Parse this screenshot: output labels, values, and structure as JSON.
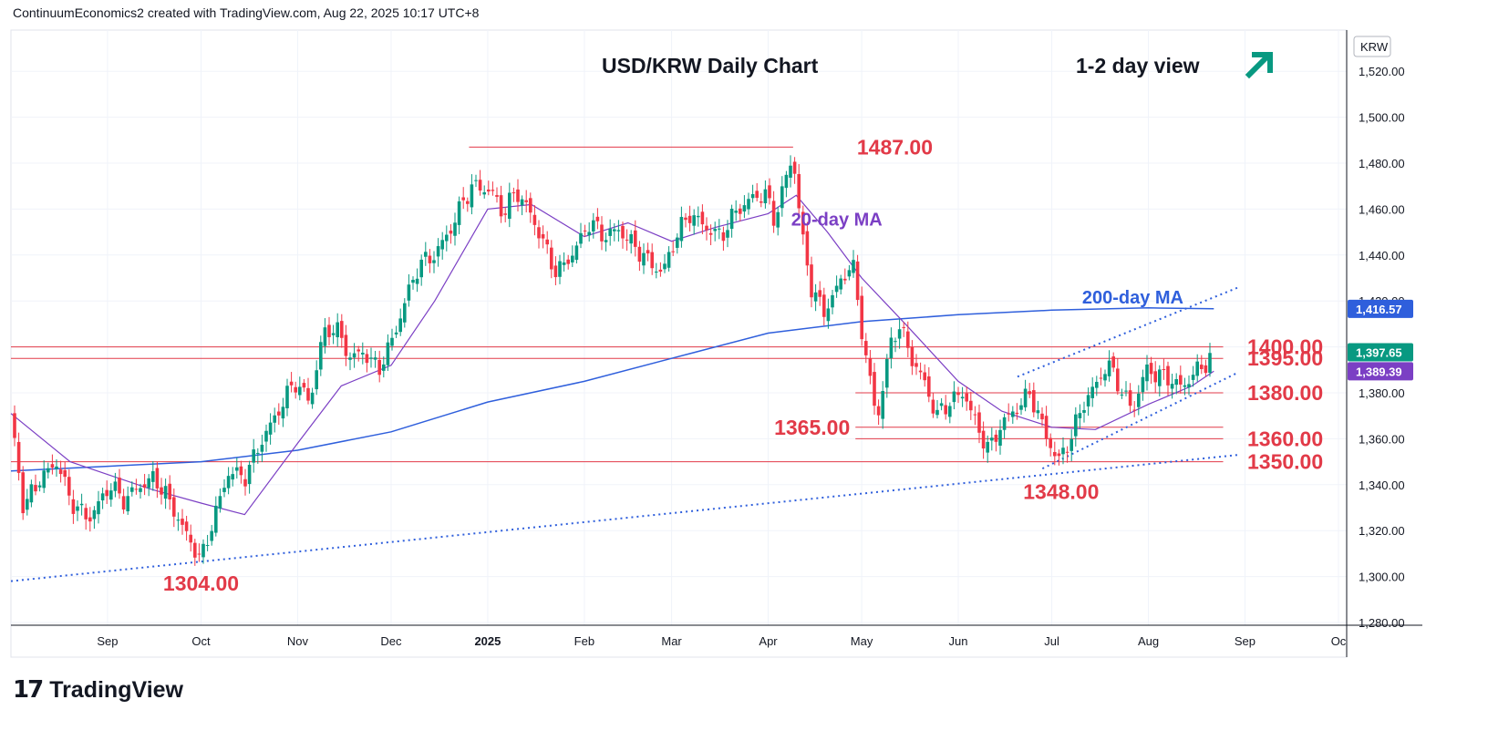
{
  "header": {
    "attribution": "ContinuumEconomics2 created with TradingView.com, Aug 22, 2025 10:17 UTC+8"
  },
  "logo": {
    "mark": "17",
    "word": "TradingView",
    "icon": "tradingview-logo-icon"
  },
  "colors": {
    "up": "#089981",
    "down": "#f23645",
    "ma20": "#7b3fc4",
    "ma200": "#2f5fdc",
    "level": "#e23a48",
    "trend": "#2f5fdc",
    "arrow": "#089981",
    "label": "#e23a48"
  },
  "chart_data": {
    "type": "candlestick",
    "title": "USD/KRW Daily Chart",
    "subtitle": "1-2 day view",
    "direction_icon": "arrow-up-right-icon",
    "currency": "KRW",
    "ylim": [
      1280,
      1540
    ],
    "y_ticks": [
      "1,520.00",
      "1,500.00",
      "1,480.00",
      "1,460.00",
      "1,440.00",
      "1,420.00",
      "1,400.00",
      "1,380.00",
      "1,360.00",
      "1,340.00",
      "1,320.00",
      "1,300.00",
      "1,280.00"
    ],
    "x_ticks": [
      {
        "label": "Sep",
        "date": "2024-09-01"
      },
      {
        "label": "Oct",
        "date": "2024-10-01"
      },
      {
        "label": "Nov",
        "date": "2024-11-01"
      },
      {
        "label": "Dec",
        "date": "2024-12-01"
      },
      {
        "label": "2025",
        "date": "2025-01-01",
        "bold": true
      },
      {
        "label": "Feb",
        "date": "2025-02-01"
      },
      {
        "label": "Mar",
        "date": "2025-03-01"
      },
      {
        "label": "Apr",
        "date": "2025-04-01"
      },
      {
        "label": "May",
        "date": "2025-05-01"
      },
      {
        "label": "Jun",
        "date": "2025-06-01"
      },
      {
        "label": "Jul",
        "date": "2025-07-01"
      },
      {
        "label": "Aug",
        "date": "2025-08-01"
      },
      {
        "label": "Sep",
        "date": "2025-09-01"
      },
      {
        "label": "Oc",
        "date": "2025-10-01"
      }
    ],
    "price_badges": [
      {
        "label": "1,416.57",
        "value": 1416.57,
        "kind": "ma200"
      },
      {
        "label": "1,397.65",
        "value": 1397.65,
        "kind": "last"
      },
      {
        "label": "1,389.39",
        "value": 1389.39,
        "kind": "ma20"
      }
    ],
    "levels": [
      {
        "label": "1487.00",
        "value": 1487,
        "from": "2024-12-26",
        "to": "2025-04-09",
        "label_side": "right"
      },
      {
        "label": "1400.00",
        "value": 1400,
        "from": "2024-08-01",
        "to": "2025-08-25",
        "label_side": "right"
      },
      {
        "label": "1395.00",
        "value": 1395,
        "from": "2024-08-01",
        "to": "2025-08-25",
        "label_side": "right"
      },
      {
        "label": "1380.00",
        "value": 1380,
        "from": "2025-04-29",
        "to": "2025-08-25",
        "label_side": "right"
      },
      {
        "label": "1365.00",
        "value": 1365,
        "from": "2025-04-29",
        "to": "2025-08-25",
        "label_side": "left"
      },
      {
        "label": "1360.00",
        "value": 1360,
        "from": "2025-04-29",
        "to": "2025-08-25",
        "label_side": "right"
      },
      {
        "label": "1350.00",
        "value": 1350,
        "from": "2024-08-01",
        "to": "2025-08-25",
        "label_side": "right"
      }
    ],
    "point_labels": [
      {
        "label": "1304.00",
        "date": "2024-10-01",
        "value": 1297
      },
      {
        "label": "1348.00",
        "date": "2025-07-04",
        "value": 1337
      }
    ],
    "ma_labels": [
      {
        "label": "20-day MA",
        "date": "2025-04-23",
        "value": 1456,
        "series": "ma20"
      },
      {
        "label": "200-day MA",
        "date": "2025-07-27",
        "value": 1422,
        "series": "ma200"
      }
    ],
    "trendlines": [
      {
        "name": "",
        "points": [
          [
            "2024-08-01",
            1298
          ],
          [
            "2025-08-30",
            1353
          ]
        ]
      },
      {
        "name": "",
        "points": [
          [
            "2025-06-20",
            1387
          ],
          [
            "2025-08-30",
            1426
          ]
        ]
      },
      {
        "name": "",
        "points": [
          [
            "2025-06-28",
            1347
          ],
          [
            "2025-08-30",
            1389
          ]
        ]
      }
    ],
    "ma200": [
      [
        "2024-08-01",
        1346
      ],
      [
        "2024-09-01",
        1348
      ],
      [
        "2024-10-01",
        1350
      ],
      [
        "2024-11-01",
        1355
      ],
      [
        "2024-12-01",
        1363
      ],
      [
        "2025-01-01",
        1376
      ],
      [
        "2025-02-01",
        1385
      ],
      [
        "2025-03-01",
        1395
      ],
      [
        "2025-04-01",
        1406
      ],
      [
        "2025-05-01",
        1411
      ],
      [
        "2025-06-01",
        1414
      ],
      [
        "2025-07-01",
        1416
      ],
      [
        "2025-08-01",
        1417
      ],
      [
        "2025-08-22",
        1416.57
      ]
    ],
    "ma20": [
      [
        "2024-08-01",
        1371
      ],
      [
        "2024-08-20",
        1350
      ],
      [
        "2024-09-15",
        1338
      ],
      [
        "2024-10-01",
        1332
      ],
      [
        "2024-10-15",
        1327
      ],
      [
        "2024-11-01",
        1358
      ],
      [
        "2024-11-15",
        1383
      ],
      [
        "2024-12-01",
        1392
      ],
      [
        "2024-12-15",
        1420
      ],
      [
        "2025-01-01",
        1460
      ],
      [
        "2025-01-15",
        1462
      ],
      [
        "2025-02-01",
        1448
      ],
      [
        "2025-02-15",
        1454
      ],
      [
        "2025-03-01",
        1446
      ],
      [
        "2025-03-15",
        1452
      ],
      [
        "2025-04-01",
        1458
      ],
      [
        "2025-04-10",
        1466
      ],
      [
        "2025-04-20",
        1450
      ],
      [
        "2025-05-01",
        1430
      ],
      [
        "2025-05-15",
        1410
      ],
      [
        "2025-06-01",
        1385
      ],
      [
        "2025-06-15",
        1372
      ],
      [
        "2025-07-01",
        1365
      ],
      [
        "2025-07-15",
        1364
      ],
      [
        "2025-08-01",
        1375
      ],
      [
        "2025-08-15",
        1383
      ],
      [
        "2025-08-22",
        1389.39
      ]
    ],
    "closes": [
      [
        "2024-08-01",
        1370
      ],
      [
        "2024-08-05",
        1330
      ],
      [
        "2024-08-10",
        1342
      ],
      [
        "2024-08-16",
        1350
      ],
      [
        "2024-08-20",
        1333
      ],
      [
        "2024-08-26",
        1325
      ],
      [
        "2024-09-02",
        1340
      ],
      [
        "2024-09-06",
        1333
      ],
      [
        "2024-09-11",
        1339
      ],
      [
        "2024-09-16",
        1343
      ],
      [
        "2024-09-20",
        1335
      ],
      [
        "2024-09-26",
        1319
      ],
      [
        "2024-10-01",
        1307
      ],
      [
        "2024-10-05",
        1325
      ],
      [
        "2024-10-10",
        1346
      ],
      [
        "2024-10-15",
        1343
      ],
      [
        "2024-10-20",
        1358
      ],
      [
        "2024-10-25",
        1370
      ],
      [
        "2024-10-31",
        1385
      ],
      [
        "2024-11-05",
        1376
      ],
      [
        "2024-11-09",
        1405
      ],
      [
        "2024-11-13",
        1409
      ],
      [
        "2024-11-18",
        1395
      ],
      [
        "2024-11-22",
        1398
      ],
      [
        "2024-11-27",
        1390
      ],
      [
        "2024-12-02",
        1405
      ],
      [
        "2024-12-06",
        1422
      ],
      [
        "2024-12-10",
        1436
      ],
      [
        "2024-12-15",
        1440
      ],
      [
        "2024-12-20",
        1451
      ],
      [
        "2024-12-24",
        1463
      ],
      [
        "2024-12-27",
        1470
      ],
      [
        "2025-01-02",
        1468
      ],
      [
        "2025-01-06",
        1458
      ],
      [
        "2025-01-10",
        1468
      ],
      [
        "2025-01-14",
        1460
      ],
      [
        "2025-01-18",
        1448
      ],
      [
        "2025-01-23",
        1432
      ],
      [
        "2025-01-28",
        1440
      ],
      [
        "2025-02-03",
        1455
      ],
      [
        "2025-02-07",
        1448
      ],
      [
        "2025-02-12",
        1451
      ],
      [
        "2025-02-17",
        1444
      ],
      [
        "2025-02-21",
        1438
      ],
      [
        "2025-02-26",
        1432
      ],
      [
        "2025-03-03",
        1450
      ],
      [
        "2025-03-07",
        1458
      ],
      [
        "2025-03-12",
        1452
      ],
      [
        "2025-03-17",
        1448
      ],
      [
        "2025-03-21",
        1458
      ],
      [
        "2025-03-26",
        1464
      ],
      [
        "2025-03-31",
        1467
      ],
      [
        "2025-04-03",
        1455
      ],
      [
        "2025-04-07",
        1475
      ],
      [
        "2025-04-09",
        1483
      ],
      [
        "2025-04-12",
        1447
      ],
      [
        "2025-04-15",
        1425
      ],
      [
        "2025-04-19",
        1415
      ],
      [
        "2025-04-24",
        1428
      ],
      [
        "2025-04-28",
        1437
      ],
      [
        "2025-05-02",
        1398
      ],
      [
        "2025-05-06",
        1368
      ],
      [
        "2025-05-10",
        1400
      ],
      [
        "2025-05-13",
        1410
      ],
      [
        "2025-05-17",
        1395
      ],
      [
        "2025-05-21",
        1385
      ],
      [
        "2025-05-25",
        1370
      ],
      [
        "2025-05-30",
        1377
      ],
      [
        "2025-06-03",
        1380
      ],
      [
        "2025-06-07",
        1365
      ],
      [
        "2025-06-11",
        1355
      ],
      [
        "2025-06-15",
        1367
      ],
      [
        "2025-06-19",
        1372
      ],
      [
        "2025-06-24",
        1380
      ],
      [
        "2025-06-29",
        1362
      ],
      [
        "2025-07-03",
        1350
      ],
      [
        "2025-07-07",
        1360
      ],
      [
        "2025-07-11",
        1375
      ],
      [
        "2025-07-15",
        1383
      ],
      [
        "2025-07-19",
        1393
      ],
      [
        "2025-07-23",
        1382
      ],
      [
        "2025-07-27",
        1372
      ],
      [
        "2025-07-31",
        1390
      ],
      [
        "2025-08-04",
        1388
      ],
      [
        "2025-08-08",
        1386
      ],
      [
        "2025-08-12",
        1382
      ],
      [
        "2025-08-15",
        1388
      ],
      [
        "2025-08-19",
        1392
      ],
      [
        "2025-08-22",
        1397.65
      ]
    ]
  }
}
